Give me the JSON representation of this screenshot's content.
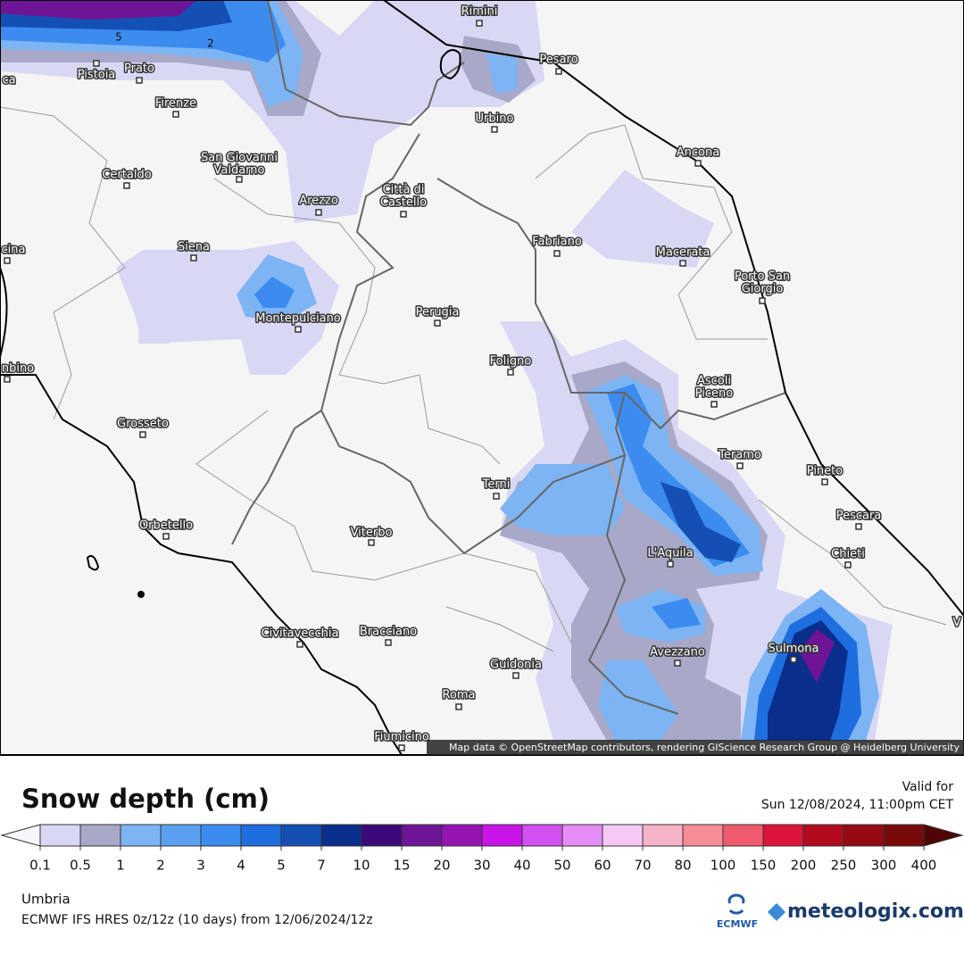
{
  "map": {
    "cities": [
      {
        "lines": [
          "Rimini"
        ]
      },
      {
        "lines": [
          "Pesaro"
        ]
      },
      {
        "lines": [
          "Pistoia"
        ]
      },
      {
        "lines": [
          "Prato"
        ]
      },
      {
        "lines": [
          "ca"
        ]
      },
      {
        "lines": [
          "Firenze"
        ]
      },
      {
        "lines": [
          "Urbino"
        ]
      },
      {
        "lines": [
          "Ancona"
        ]
      },
      {
        "lines": [
          "San Giovanni",
          "Valdarno"
        ]
      },
      {
        "lines": [
          "Certaldo"
        ]
      },
      {
        "lines": [
          "Arezzo"
        ]
      },
      {
        "lines": [
          "Città di",
          "Castello"
        ]
      },
      {
        "lines": [
          "Fabriano"
        ]
      },
      {
        "lines": [
          "Macerata"
        ]
      },
      {
        "lines": [
          "cina"
        ]
      },
      {
        "lines": [
          "Siena"
        ]
      },
      {
        "lines": [
          "Porto San",
          "Giorgio"
        ]
      },
      {
        "lines": [
          "Montepulciano"
        ]
      },
      {
        "lines": [
          "Perugia"
        ]
      },
      {
        "lines": [
          "Foligno"
        ]
      },
      {
        "lines": [
          "nbino"
        ]
      },
      {
        "lines": [
          "Ascoli",
          "Piceno"
        ]
      },
      {
        "lines": [
          "Grosseto"
        ]
      },
      {
        "lines": [
          "Teramo"
        ]
      },
      {
        "lines": [
          "Pineto"
        ]
      },
      {
        "lines": [
          "Terni"
        ]
      },
      {
        "lines": [
          "Pescara"
        ]
      },
      {
        "lines": [
          "Orbetello"
        ]
      },
      {
        "lines": [
          "Viterbo"
        ]
      },
      {
        "lines": [
          "L'Aquila"
        ]
      },
      {
        "lines": [
          "Chieti"
        ]
      },
      {
        "lines": [
          "Civitavecchia"
        ]
      },
      {
        "lines": [
          "Bracciano"
        ]
      },
      {
        "lines": [
          "Sulmona"
        ]
      },
      {
        "lines": [
          "Avezzano"
        ]
      },
      {
        "lines": [
          "Guidonia"
        ]
      },
      {
        "lines": [
          "Roma"
        ]
      },
      {
        "lines": [
          "Fiumicino"
        ]
      },
      {
        "lines": [
          "V"
        ]
      }
    ],
    "contour_labels": [
      "5",
      "2"
    ],
    "attribution": "Map data © OpenStreetMap contributors, rendering GIScience Research Group @ Heidelberg University"
  },
  "legend": {
    "title": "Snow depth (cm)",
    "valid_label": "Valid for",
    "valid_time": "Sun 12/08/2024, 11:00pm CET",
    "ticks": [
      0.1,
      0.5,
      1,
      2,
      3,
      4,
      5,
      7,
      10,
      15,
      20,
      30,
      40,
      50,
      60,
      70,
      80,
      100,
      150,
      200,
      250,
      300,
      400
    ],
    "colors": [
      "#d8d8f5",
      "#a8a8c8",
      "#7cb4f4",
      "#5aa0f0",
      "#3c8cf0",
      "#1e6ee0",
      "#1450b4",
      "#0a2e8c",
      "#3c0a78",
      "#6e1496",
      "#9614b4",
      "#c814e6",
      "#d250f0",
      "#e68cf5",
      "#f5c8f5",
      "#f5b4c8",
      "#f58c96",
      "#f05a6e",
      "#dc143c",
      "#b40a1e",
      "#960a14",
      "#780a0a"
    ],
    "under_color": "#f5f5fa",
    "over_color": "#500505"
  },
  "footer": {
    "region": "Umbria",
    "model": "ECMWF IFS HRES 0z/12z (10 days) from  12/06/2024/12z",
    "logo_left": "ECMWF",
    "logo_right": "meteologix.com"
  }
}
